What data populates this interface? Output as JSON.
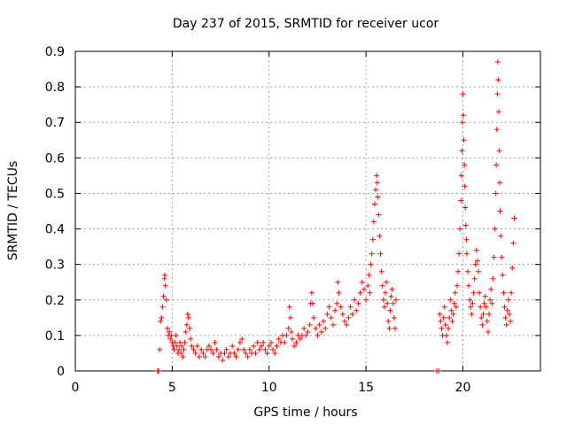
{
  "chart_data": {
    "type": "scatter",
    "title": "Day 237 of 2015, SRMTID for receiver ucor",
    "xlabel": "GPS time / hours",
    "ylabel": "SRMTID / TECUs",
    "xlim": [
      0,
      24
    ],
    "ylim": [
      0,
      0.9
    ],
    "xticks": [
      0,
      5,
      10,
      15,
      20
    ],
    "xtick_labels": [
      "0",
      "5",
      "10",
      "15",
      "20"
    ],
    "yticks": [
      0,
      0.1,
      0.2,
      0.3,
      0.4,
      0.5,
      0.6,
      0.7,
      0.8,
      0.9
    ],
    "ytick_labels": [
      "0",
      "0.1",
      "0.2",
      "0.3",
      "0.4",
      "0.5",
      "0.6",
      "0.7",
      "0.8",
      "0.9"
    ],
    "grid": true,
    "marker": "+",
    "color": "#ff0000",
    "series": [
      {
        "name": "SRMTID",
        "points": [
          [
            4.25,
            0.0
          ],
          [
            4.3,
            0.0
          ],
          [
            4.35,
            0.06
          ],
          [
            4.4,
            0.14
          ],
          [
            4.45,
            0.15
          ],
          [
            4.5,
            0.18
          ],
          [
            4.55,
            0.21
          ],
          [
            4.6,
            0.26
          ],
          [
            4.62,
            0.27
          ],
          [
            4.65,
            0.24
          ],
          [
            4.7,
            0.2
          ],
          [
            4.75,
            0.12
          ],
          [
            4.8,
            0.1
          ],
          [
            4.85,
            0.11
          ],
          [
            4.9,
            0.09
          ],
          [
            4.95,
            0.1
          ],
          [
            5.0,
            0.08
          ],
          [
            5.05,
            0.07
          ],
          [
            5.1,
            0.06
          ],
          [
            5.15,
            0.08
          ],
          [
            5.2,
            0.1
          ],
          [
            5.25,
            0.07
          ],
          [
            5.3,
            0.05
          ],
          [
            5.35,
            0.06
          ],
          [
            5.4,
            0.08
          ],
          [
            5.45,
            0.05
          ],
          [
            5.5,
            0.07
          ],
          [
            5.55,
            0.04
          ],
          [
            5.6,
            0.06
          ],
          [
            5.65,
            0.08
          ],
          [
            5.7,
            0.11
          ],
          [
            5.75,
            0.13
          ],
          [
            5.8,
            0.16
          ],
          [
            5.85,
            0.15
          ],
          [
            5.9,
            0.12
          ],
          [
            5.95,
            0.09
          ],
          [
            6.0,
            0.07
          ],
          [
            6.1,
            0.06
          ],
          [
            6.2,
            0.05
          ],
          [
            6.3,
            0.07
          ],
          [
            6.4,
            0.04
          ],
          [
            6.5,
            0.06
          ],
          [
            6.6,
            0.05
          ],
          [
            6.7,
            0.04
          ],
          [
            6.8,
            0.06
          ],
          [
            6.9,
            0.07
          ],
          [
            7.0,
            0.06
          ],
          [
            7.1,
            0.05
          ],
          [
            7.2,
            0.08
          ],
          [
            7.3,
            0.06
          ],
          [
            7.4,
            0.04
          ],
          [
            7.5,
            0.05
          ],
          [
            7.6,
            0.03
          ],
          [
            7.7,
            0.05
          ],
          [
            7.8,
            0.06
          ],
          [
            7.9,
            0.04
          ],
          [
            8.0,
            0.05
          ],
          [
            8.1,
            0.07
          ],
          [
            8.2,
            0.05
          ],
          [
            8.3,
            0.04
          ],
          [
            8.4,
            0.06
          ],
          [
            8.5,
            0.08
          ],
          [
            8.6,
            0.09
          ],
          [
            8.7,
            0.06
          ],
          [
            8.8,
            0.05
          ],
          [
            8.9,
            0.04
          ],
          [
            9.0,
            0.06
          ],
          [
            9.1,
            0.05
          ],
          [
            9.2,
            0.07
          ],
          [
            9.3,
            0.05
          ],
          [
            9.4,
            0.08
          ],
          [
            9.5,
            0.06
          ],
          [
            9.6,
            0.07
          ],
          [
            9.7,
            0.08
          ],
          [
            9.8,
            0.06
          ],
          [
            9.9,
            0.05
          ],
          [
            10.0,
            0.07
          ],
          [
            10.1,
            0.08
          ],
          [
            10.2,
            0.06
          ],
          [
            10.3,
            0.05
          ],
          [
            10.4,
            0.07
          ],
          [
            10.5,
            0.09
          ],
          [
            10.6,
            0.08
          ],
          [
            10.7,
            0.1
          ],
          [
            10.8,
            0.08
          ],
          [
            10.9,
            0.1
          ],
          [
            11.0,
            0.12
          ],
          [
            11.05,
            0.18
          ],
          [
            11.1,
            0.15
          ],
          [
            11.15,
            0.11
          ],
          [
            11.2,
            0.09
          ],
          [
            11.3,
            0.07
          ],
          [
            11.4,
            0.08
          ],
          [
            11.5,
            0.1
          ],
          [
            11.6,
            0.09
          ],
          [
            11.7,
            0.1
          ],
          [
            11.8,
            0.12
          ],
          [
            11.9,
            0.1
          ],
          [
            12.0,
            0.11
          ],
          [
            12.1,
            0.13
          ],
          [
            12.15,
            0.19
          ],
          [
            12.2,
            0.22
          ],
          [
            12.25,
            0.19
          ],
          [
            12.3,
            0.15
          ],
          [
            12.4,
            0.12
          ],
          [
            12.5,
            0.1
          ],
          [
            12.6,
            0.13
          ],
          [
            12.7,
            0.11
          ],
          [
            12.8,
            0.14
          ],
          [
            12.9,
            0.12
          ],
          [
            13.0,
            0.16
          ],
          [
            13.1,
            0.18
          ],
          [
            13.2,
            0.15
          ],
          [
            13.3,
            0.13
          ],
          [
            13.4,
            0.17
          ],
          [
            13.5,
            0.19
          ],
          [
            13.55,
            0.25
          ],
          [
            13.6,
            0.22
          ],
          [
            13.7,
            0.18
          ],
          [
            13.8,
            0.16
          ],
          [
            13.9,
            0.14
          ],
          [
            14.0,
            0.13
          ],
          [
            14.1,
            0.15
          ],
          [
            14.2,
            0.18
          ],
          [
            14.3,
            0.16
          ],
          [
            14.4,
            0.2
          ],
          [
            14.5,
            0.17
          ],
          [
            14.6,
            0.19
          ],
          [
            14.7,
            0.22
          ],
          [
            14.8,
            0.25
          ],
          [
            14.9,
            0.23
          ],
          [
            15.0,
            0.2
          ],
          [
            15.1,
            0.24
          ],
          [
            15.15,
            0.27
          ],
          [
            15.2,
            0.22
          ],
          [
            15.25,
            0.3
          ],
          [
            15.3,
            0.33
          ],
          [
            15.35,
            0.37
          ],
          [
            15.4,
            0.42
          ],
          [
            15.45,
            0.47
          ],
          [
            15.5,
            0.51
          ],
          [
            15.55,
            0.55
          ],
          [
            15.58,
            0.53
          ],
          [
            15.6,
            0.49
          ],
          [
            15.65,
            0.44
          ],
          [
            15.7,
            0.38
          ],
          [
            15.75,
            0.33
          ],
          [
            15.8,
            0.28
          ],
          [
            15.85,
            0.24
          ],
          [
            15.9,
            0.2
          ],
          [
            15.95,
            0.18
          ],
          [
            16.0,
            0.22
          ],
          [
            16.05,
            0.25
          ],
          [
            16.1,
            0.19
          ],
          [
            16.15,
            0.14
          ],
          [
            16.2,
            0.12
          ],
          [
            16.25,
            0.17
          ],
          [
            16.3,
            0.21
          ],
          [
            16.35,
            0.23
          ],
          [
            16.4,
            0.19
          ],
          [
            16.45,
            0.15
          ],
          [
            16.5,
            0.12
          ],
          [
            16.55,
            0.2
          ],
          [
            18.65,
            0.0
          ],
          [
            18.75,
            0.0
          ],
          [
            18.8,
            0.16
          ],
          [
            18.85,
            0.14
          ],
          [
            18.9,
            0.12
          ],
          [
            18.95,
            0.1
          ],
          [
            19.0,
            0.15
          ],
          [
            19.05,
            0.18
          ],
          [
            19.1,
            0.13
          ],
          [
            19.15,
            0.1
          ],
          [
            19.2,
            0.08
          ],
          [
            19.25,
            0.12
          ],
          [
            19.3,
            0.15
          ],
          [
            19.35,
            0.2
          ],
          [
            19.4,
            0.17
          ],
          [
            19.45,
            0.14
          ],
          [
            19.5,
            0.16
          ],
          [
            19.55,
            0.19
          ],
          [
            19.6,
            0.22
          ],
          [
            19.65,
            0.18
          ],
          [
            19.7,
            0.24
          ],
          [
            19.75,
            0.28
          ],
          [
            19.8,
            0.33
          ],
          [
            19.85,
            0.4
          ],
          [
            19.9,
            0.48
          ],
          [
            19.92,
            0.55
          ],
          [
            19.95,
            0.62
          ],
          [
            19.97,
            0.7
          ],
          [
            20.0,
            0.78
          ],
          [
            20.02,
            0.72
          ],
          [
            20.05,
            0.65
          ],
          [
            20.08,
            0.58
          ],
          [
            20.1,
            0.52
          ],
          [
            20.12,
            0.46
          ],
          [
            20.15,
            0.41
          ],
          [
            20.18,
            0.37
          ],
          [
            20.2,
            0.33
          ],
          [
            20.25,
            0.28
          ],
          [
            20.3,
            0.24
          ],
          [
            20.35,
            0.2
          ],
          [
            20.4,
            0.18
          ],
          [
            20.45,
            0.16
          ],
          [
            20.5,
            0.19
          ],
          [
            20.55,
            0.22
          ],
          [
            20.6,
            0.26
          ],
          [
            20.65,
            0.3
          ],
          [
            20.7,
            0.34
          ],
          [
            20.75,
            0.31
          ],
          [
            20.8,
            0.28
          ],
          [
            20.85,
            0.22
          ],
          [
            20.9,
            0.18
          ],
          [
            20.95,
            0.15
          ],
          [
            21.0,
            0.13
          ],
          [
            21.05,
            0.16
          ],
          [
            21.1,
            0.19
          ],
          [
            21.15,
            0.21
          ],
          [
            21.2,
            0.18
          ],
          [
            21.25,
            0.14
          ],
          [
            21.3,
            0.11
          ],
          [
            21.35,
            0.16
          ],
          [
            21.4,
            0.2
          ],
          [
            21.45,
            0.23
          ],
          [
            21.5,
            0.19
          ],
          [
            21.55,
            0.26
          ],
          [
            21.6,
            0.32
          ],
          [
            21.65,
            0.4
          ],
          [
            21.7,
            0.5
          ],
          [
            21.72,
            0.58
          ],
          [
            21.75,
            0.68
          ],
          [
            21.78,
            0.78
          ],
          [
            21.8,
            0.87
          ],
          [
            21.82,
            0.82
          ],
          [
            21.85,
            0.73
          ],
          [
            21.88,
            0.62
          ],
          [
            21.9,
            0.53
          ],
          [
            21.92,
            0.45
          ],
          [
            21.95,
            0.38
          ],
          [
            22.0,
            0.32
          ],
          [
            22.05,
            0.27
          ],
          [
            22.1,
            0.22
          ],
          [
            22.15,
            0.18
          ],
          [
            22.2,
            0.15
          ],
          [
            22.25,
            0.13
          ],
          [
            22.3,
            0.17
          ],
          [
            22.35,
            0.2
          ],
          [
            22.4,
            0.16
          ],
          [
            22.45,
            0.14
          ],
          [
            22.5,
            0.22
          ],
          [
            22.55,
            0.29
          ],
          [
            22.6,
            0.36
          ],
          [
            22.65,
            0.43
          ]
        ]
      }
    ]
  }
}
